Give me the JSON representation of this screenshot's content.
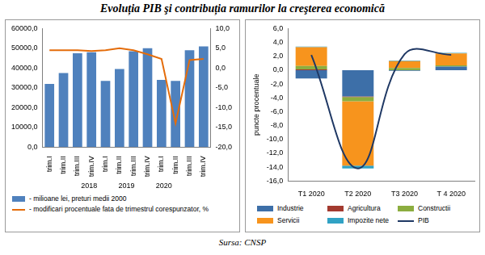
{
  "title": "Evoluția PIB şi contribuția ramurilor la creşterea economică",
  "source": "Sursa: CNSP",
  "chart_data": [
    {
      "type": "bar",
      "categories": [
        "trim.I",
        "trim.II",
        "trim.III",
        "trim.IV",
        "trim.I",
        "trim.II",
        "trim.III",
        "trim.IV",
        "trim.I",
        "trim.II",
        "trim.III",
        "trim.IV"
      ],
      "x_groups": [
        "2018",
        "2019",
        "2020"
      ],
      "series": [
        {
          "name": "- milioane lei, preturi medii 2000",
          "color": "#4f81bd",
          "values": [
            32000,
            37500,
            47500,
            48000,
            33500,
            39500,
            48500,
            50000,
            34000,
            33500,
            49000,
            51000
          ]
        },
        {
          "name": "- modificari procentuale fata de trimestrul corespunzator, %",
          "type": "line",
          "axis": "y2",
          "color": "#e46c0a",
          "line_style": "solid",
          "values": [
            4.5,
            4.5,
            4.5,
            4.3,
            4.5,
            5.0,
            4.5,
            3.5,
            2.3,
            -14.0,
            2.0,
            2.3
          ]
        }
      ],
      "ylim": [
        0,
        60000
      ],
      "yticks": [
        {
          "value": 0,
          "label": "0,0"
        },
        {
          "value": 10000,
          "label": "10000,0"
        },
        {
          "value": 20000,
          "label": "20000,0"
        },
        {
          "value": 30000,
          "label": "30000,0"
        },
        {
          "value": 40000,
          "label": "40000,0"
        },
        {
          "value": 50000,
          "label": "50000,0"
        },
        {
          "value": 60000,
          "label": "60000,0"
        }
      ],
      "y2lim": [
        -20,
        10
      ],
      "y2ticks": [
        {
          "value": -20,
          "label": "-20,0"
        },
        {
          "value": -15,
          "label": "-15,0"
        },
        {
          "value": -10,
          "label": "-10,0"
        },
        {
          "value": -5,
          "label": "-5,0"
        },
        {
          "value": 0,
          "label": "0,0"
        },
        {
          "value": 5,
          "label": "5,0"
        },
        {
          "value": 10,
          "label": "10,0"
        }
      ],
      "grid": false,
      "legend": "bottom"
    },
    {
      "type": "bar",
      "stacked": true,
      "y_label": "puncte procentuale",
      "categories": [
        "T1 2020",
        "T2 2020",
        "T3 2020",
        "T 4 2020"
      ],
      "series": [
        {
          "name": "Industrie",
          "color": "#3d6fa8",
          "values": [
            -1.2,
            -3.8,
            -0.1,
            0.5
          ]
        },
        {
          "name": "Agricultura",
          "color": "#a33a2f",
          "values": [
            0.1,
            -0.1,
            0.0,
            0.0
          ]
        },
        {
          "name": "Constructii",
          "color": "#8cad3f",
          "values": [
            0.5,
            -0.6,
            0.3,
            0.2
          ]
        },
        {
          "name": "Servicii",
          "color": "#f7941d",
          "values": [
            2.7,
            -9.3,
            1.0,
            1.7
          ]
        },
        {
          "name": "Impozite nete",
          "color": "#31a2c4",
          "values": [
            0.1,
            -0.4,
            0.1,
            0.1
          ]
        },
        {
          "name": "PIB",
          "type": "line",
          "color": "#1f3864",
          "line_style": "smooth",
          "values": [
            2.2,
            -14.2,
            2.3,
            2.2
          ]
        }
      ],
      "ylim": [
        -16,
        6
      ],
      "yticks": [
        {
          "value": -16,
          "label": "-16,0"
        },
        {
          "value": -14,
          "label": "-14,0"
        },
        {
          "value": -12,
          "label": "-12,0"
        },
        {
          "value": -10,
          "label": "-10,0"
        },
        {
          "value": -8,
          "label": "-8,0"
        },
        {
          "value": -6,
          "label": "-6,0"
        },
        {
          "value": -4,
          "label": "-4,0"
        },
        {
          "value": -2,
          "label": "-2,0"
        },
        {
          "value": 0,
          "label": "0,0"
        },
        {
          "value": 2,
          "label": "2,0"
        },
        {
          "value": 4,
          "label": "4,0"
        },
        {
          "value": 6,
          "label": "6,0"
        }
      ],
      "grid": false,
      "legend": "bottom"
    }
  ]
}
